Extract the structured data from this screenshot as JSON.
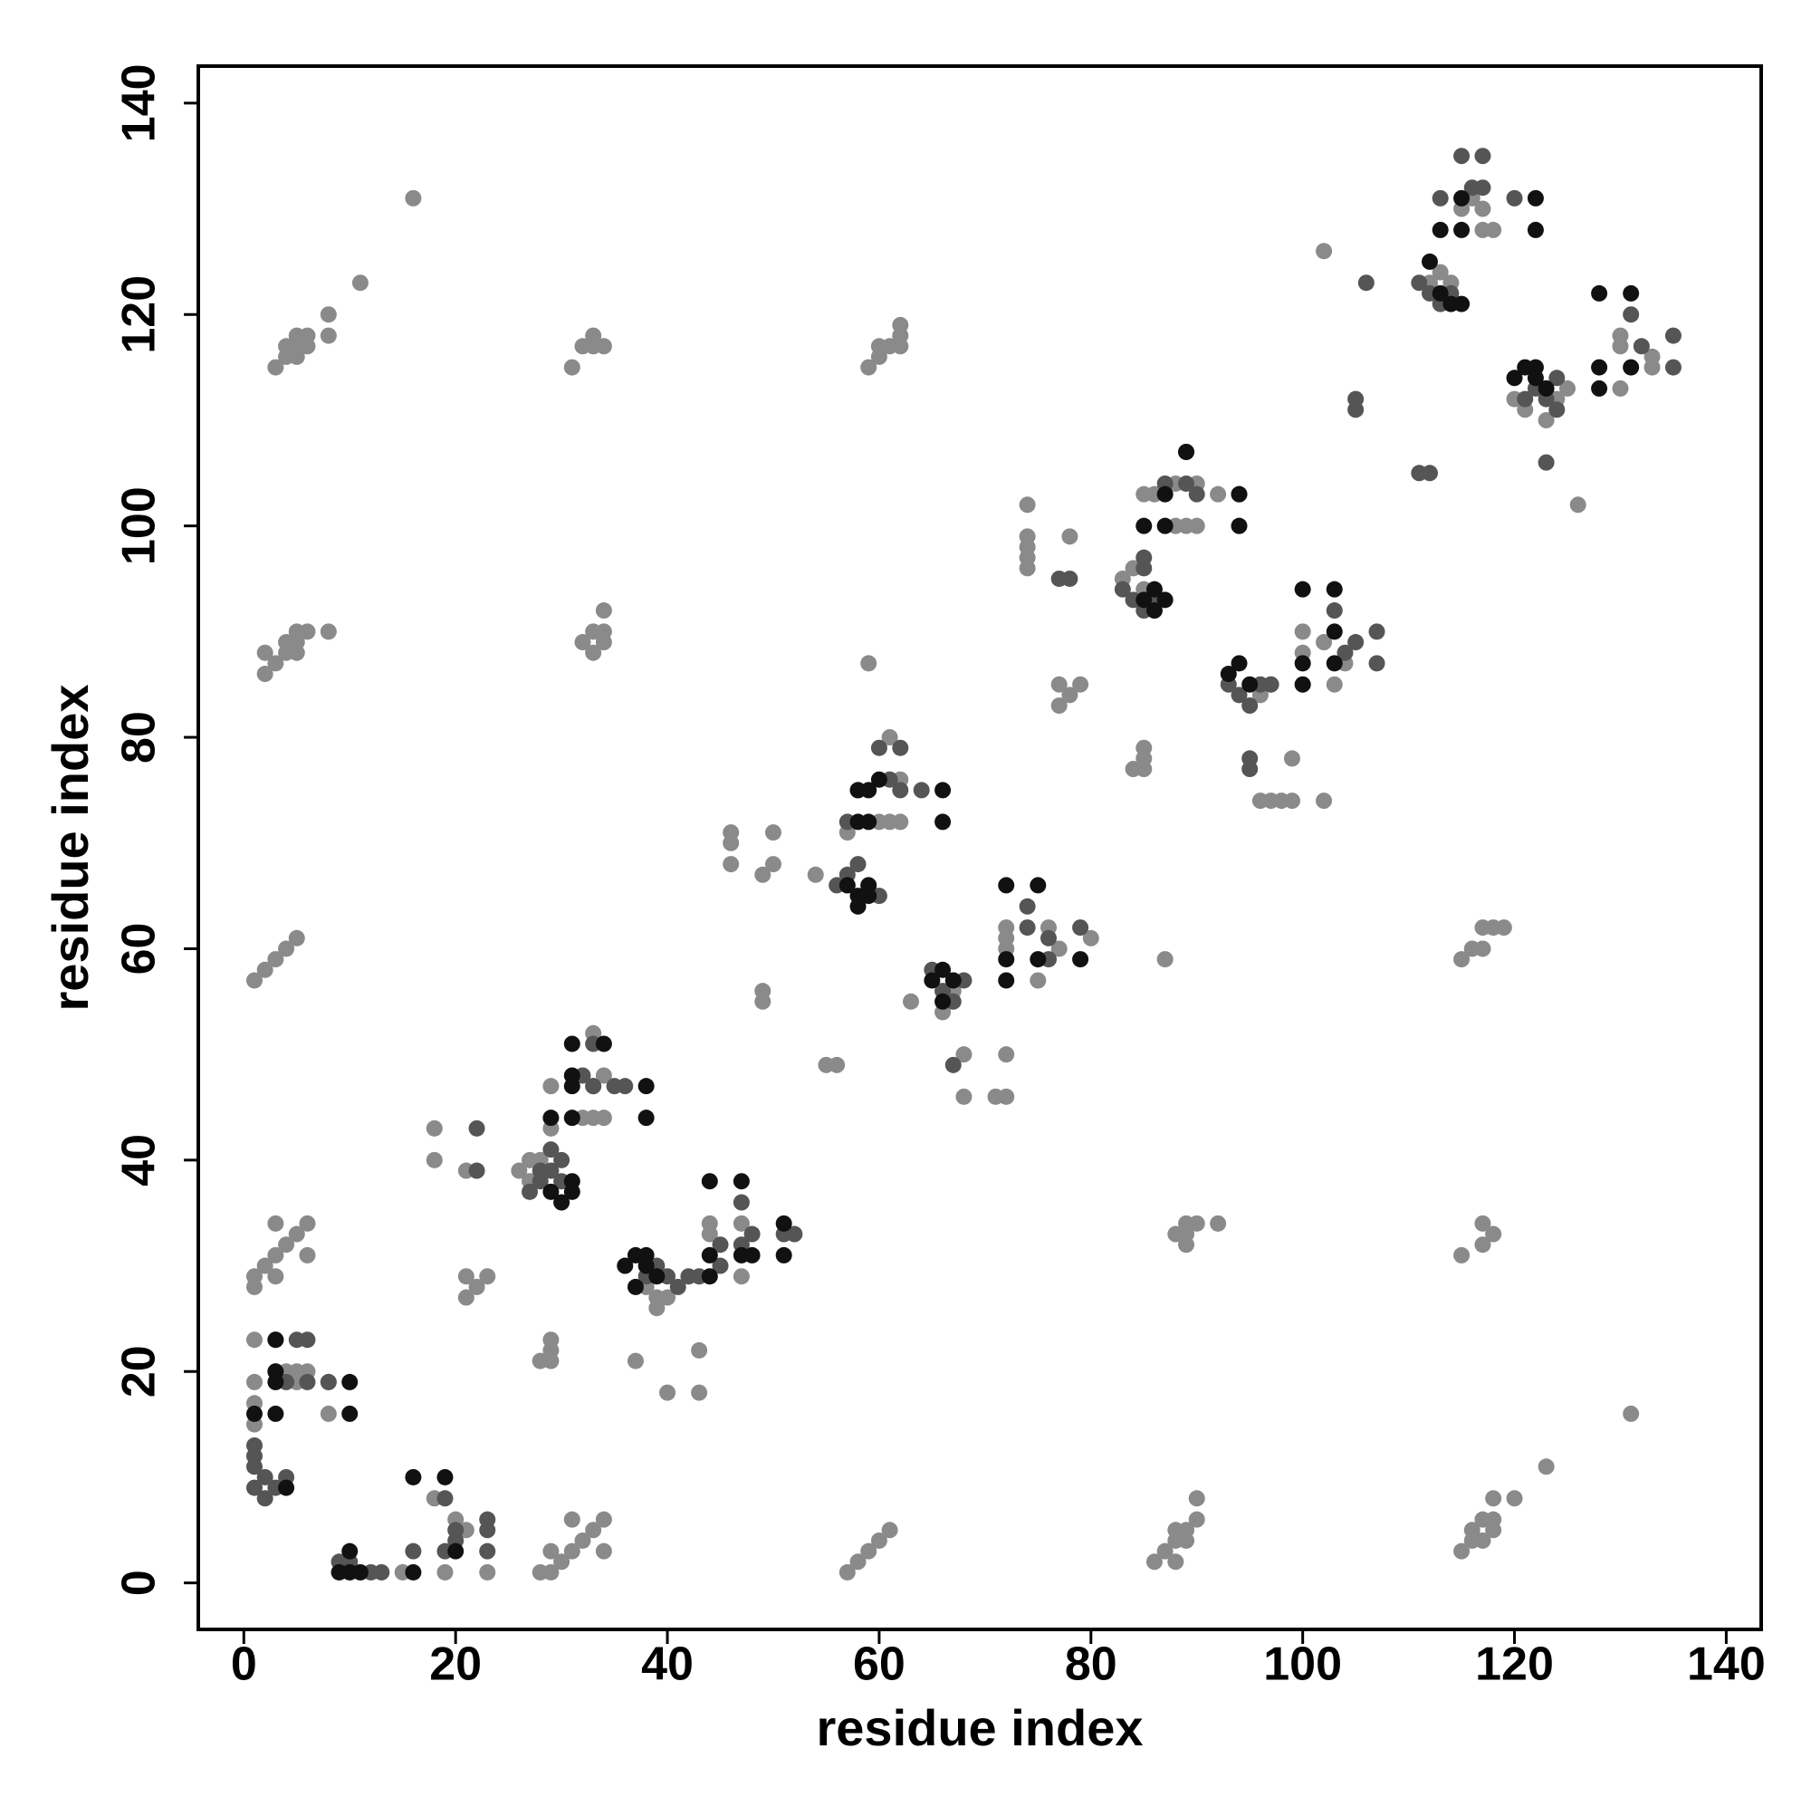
{
  "chart_data": {
    "type": "scatter",
    "x_label": "residue index",
    "y_label": "residue index",
    "xlim": [
      -4.3,
      143.3
    ],
    "ylim": [
      -4.4,
      143.5
    ],
    "xticks": [
      0,
      20,
      40,
      60,
      80,
      100,
      120,
      140
    ],
    "yticks": [
      0,
      20,
      40,
      60,
      80,
      100,
      120,
      140
    ],
    "series": [
      {
        "color": "#8a8a8a",
        "x": [
          3,
          4,
          4,
          5,
          5,
          5,
          6,
          6,
          8,
          8,
          11,
          16,
          31,
          32,
          33,
          33,
          34,
          59,
          60,
          60,
          61,
          62,
          62,
          62,
          2,
          2,
          3,
          4,
          4,
          5,
          5,
          5,
          6,
          8,
          32,
          33,
          33,
          34,
          34,
          34,
          1,
          2,
          3,
          4,
          5,
          1,
          1,
          2,
          3,
          3,
          3,
          4,
          5,
          6,
          6,
          18,
          18,
          21,
          21,
          21,
          22,
          23,
          28,
          29,
          29,
          29,
          15,
          18,
          19,
          20,
          21,
          23,
          28,
          29,
          29,
          30,
          31,
          31,
          32,
          33,
          34,
          34,
          57,
          58,
          59,
          60,
          61,
          86,
          87,
          88,
          88,
          88,
          89,
          90,
          90,
          89,
          115,
          116,
          116,
          117,
          117,
          118,
          118,
          118,
          120,
          123,
          131,
          88,
          89,
          89,
          89,
          90,
          92,
          115,
          117,
          117,
          118,
          115,
          116,
          117,
          117,
          118,
          119,
          74,
          74,
          74,
          74,
          74,
          78,
          77,
          77,
          78,
          79,
          84,
          85,
          85,
          85,
          87,
          46,
          46,
          46,
          49,
          50,
          50,
          49,
          49,
          55,
          56,
          59,
          68,
          71,
          72,
          72,
          68,
          96,
          97,
          98,
          99,
          99,
          102,
          100,
          102,
          126,
          1,
          1,
          1,
          1,
          3,
          4,
          5,
          5,
          6,
          8,
          8,
          26,
          27,
          27,
          28,
          29,
          29,
          32,
          33,
          34,
          33,
          34,
          33,
          37,
          38,
          39,
          39,
          40,
          40,
          43,
          43,
          44,
          47,
          44,
          47,
          54,
          57,
          57,
          61,
          62,
          62,
          61,
          60,
          63,
          66,
          67,
          72,
          72,
          72,
          75,
          76,
          77,
          80,
          83,
          84,
          85,
          85,
          86,
          88,
          89,
          90,
          88,
          90,
          92,
          96,
          97,
          100,
          100,
          103,
          104,
          102,
          112,
          113,
          114,
          115,
          116,
          117,
          117,
          118,
          120,
          121,
          123,
          125,
          124,
          130,
          130,
          130,
          133,
          133
        ],
        "values": [
          115,
          116,
          117,
          116,
          117,
          118,
          117,
          118,
          118,
          120,
          123,
          131,
          115,
          117,
          117,
          118,
          117,
          115,
          116,
          117,
          117,
          117,
          118,
          119,
          86,
          88,
          87,
          88,
          89,
          88,
          89,
          90,
          90,
          90,
          89,
          88,
          90,
          89,
          90,
          92,
          57,
          58,
          59,
          60,
          61,
          28,
          29,
          30,
          29,
          31,
          34,
          32,
          33,
          31,
          34,
          40,
          43,
          39,
          27,
          29,
          28,
          29,
          21,
          21,
          22,
          23,
          1,
          8,
          1,
          6,
          5,
          1,
          1,
          1,
          3,
          2,
          3,
          6,
          4,
          5,
          3,
          6,
          1,
          2,
          3,
          4,
          5,
          2,
          3,
          2,
          4,
          5,
          5,
          6,
          8,
          4,
          3,
          4,
          5,
          4,
          6,
          5,
          6,
          8,
          8,
          11,
          16,
          33,
          32,
          33,
          34,
          34,
          34,
          31,
          32,
          34,
          33,
          59,
          60,
          60,
          62,
          62,
          62,
          96,
          97,
          98,
          99,
          102,
          99,
          83,
          85,
          84,
          85,
          77,
          77,
          78,
          79,
          59,
          68,
          70,
          71,
          67,
          68,
          71,
          55,
          56,
          49,
          49,
          87,
          46,
          46,
          46,
          50,
          50,
          74,
          74,
          74,
          74,
          78,
          74,
          85,
          126,
          102,
          15,
          17,
          19,
          23,
          20,
          20,
          19,
          20,
          20,
          16,
          19,
          39,
          38,
          40,
          40,
          43,
          47,
          44,
          44,
          44,
          52,
          48,
          47,
          21,
          28,
          27,
          26,
          18,
          27,
          18,
          22,
          33,
          29,
          34,
          34,
          67,
          66,
          71,
          72,
          72,
          76,
          80,
          72,
          55,
          54,
          56,
          60,
          61,
          62,
          57,
          62,
          60,
          61,
          95,
          96,
          94,
          103,
          103,
          100,
          100,
          100,
          104,
          104,
          103,
          84,
          85,
          88,
          90,
          85,
          87,
          89,
          123,
          124,
          123,
          130,
          131,
          130,
          128,
          128,
          112,
          111,
          110,
          113,
          112,
          113,
          117,
          118,
          115,
          116
        ]
      },
      {
        "color": "#555555",
        "x": [
          1,
          1,
          1,
          1,
          2,
          3,
          4,
          2,
          3,
          5,
          6,
          4,
          6,
          8,
          9,
          10,
          12,
          13,
          16,
          19,
          19,
          20,
          20,
          22,
          22,
          23,
          23,
          23,
          27,
          28,
          29,
          30,
          28,
          30,
          32,
          33,
          33,
          35,
          36,
          29,
          38,
          39,
          40,
          41,
          42,
          43,
          45,
          45,
          47,
          47,
          48,
          51,
          52,
          56,
          57,
          58,
          59,
          60,
          57,
          58,
          60,
          61,
          62,
          64,
          62,
          65,
          66,
          67,
          68,
          67,
          74,
          74,
          76,
          76,
          79,
          83,
          84,
          85,
          85,
          85,
          86,
          87,
          89,
          89,
          90,
          94,
          93,
          94,
          95,
          96,
          97,
          95,
          95,
          103,
          104,
          105,
          107,
          107,
          111,
          112,
          113,
          114,
          113,
          115,
          116,
          117,
          117,
          120,
          111,
          112,
          121,
          122,
          123,
          124,
          124,
          123,
          131,
          132,
          135,
          135,
          106,
          77,
          78,
          105,
          105
        ],
        "values": [
          9,
          11,
          12,
          13,
          10,
          9,
          10,
          8,
          23,
          23,
          23,
          19,
          19,
          19,
          2,
          2,
          1,
          1,
          3,
          3,
          8,
          4,
          5,
          43,
          39,
          5,
          3,
          6,
          37,
          38,
          39,
          40,
          39,
          38,
          48,
          51,
          47,
          47,
          47,
          41,
          29,
          30,
          29,
          28,
          29,
          29,
          30,
          32,
          36,
          32,
          33,
          33,
          33,
          66,
          67,
          68,
          66,
          65,
          72,
          75,
          79,
          76,
          75,
          75,
          79,
          58,
          56,
          55,
          57,
          49,
          64,
          62,
          59,
          61,
          62,
          94,
          93,
          92,
          96,
          97,
          93,
          104,
          104,
          107,
          103,
          103,
          85,
          84,
          83,
          85,
          85,
          77,
          78,
          92,
          88,
          89,
          87,
          90,
          123,
          122,
          121,
          122,
          131,
          135,
          132,
          132,
          135,
          131,
          105,
          105,
          112,
          113,
          112,
          114,
          111,
          106,
          120,
          117,
          118,
          115,
          123,
          95,
          95,
          111,
          112
        ]
      },
      {
        "color": "#111111",
        "x": [
          1,
          3,
          3,
          3,
          3,
          10,
          10,
          4,
          9,
          10,
          10,
          11,
          16,
          19,
          16,
          20,
          29,
          30,
          31,
          31,
          29,
          31,
          31,
          31,
          31,
          34,
          38,
          38,
          36,
          37,
          37,
          38,
          38,
          39,
          44,
          44,
          44,
          47,
          47,
          48,
          51,
          51,
          57,
          58,
          58,
          59,
          59,
          58,
          58,
          59,
          59,
          60,
          66,
          66,
          65,
          66,
          66,
          67,
          72,
          72,
          72,
          75,
          75,
          79,
          85,
          86,
          86,
          87,
          85,
          87,
          87,
          89,
          94,
          94,
          93,
          94,
          95,
          100,
          100,
          100,
          103,
          103,
          103,
          112,
          113,
          114,
          115,
          113,
          115,
          115,
          122,
          122,
          120,
          121,
          122,
          122,
          123,
          128,
          128,
          128,
          131,
          131
        ],
        "values": [
          16,
          16,
          19,
          20,
          23,
          19,
          16,
          9,
          1,
          1,
          3,
          1,
          10,
          10,
          1,
          3,
          37,
          36,
          37,
          38,
          44,
          44,
          47,
          48,
          51,
          51,
          47,
          44,
          30,
          28,
          31,
          30,
          31,
          29,
          29,
          31,
          38,
          38,
          31,
          31,
          31,
          34,
          66,
          65,
          64,
          65,
          66,
          72,
          75,
          72,
          75,
          76,
          72,
          75,
          57,
          55,
          58,
          57,
          57,
          59,
          66,
          66,
          59,
          59,
          93,
          94,
          92,
          93,
          100,
          100,
          103,
          107,
          100,
          103,
          86,
          87,
          85,
          85,
          87,
          94,
          94,
          87,
          90,
          125,
          122,
          121,
          121,
          128,
          128,
          131,
          131,
          128,
          114,
          115,
          114,
          115,
          113,
          113,
          115,
          122,
          122,
          115
        ]
      }
    ]
  }
}
